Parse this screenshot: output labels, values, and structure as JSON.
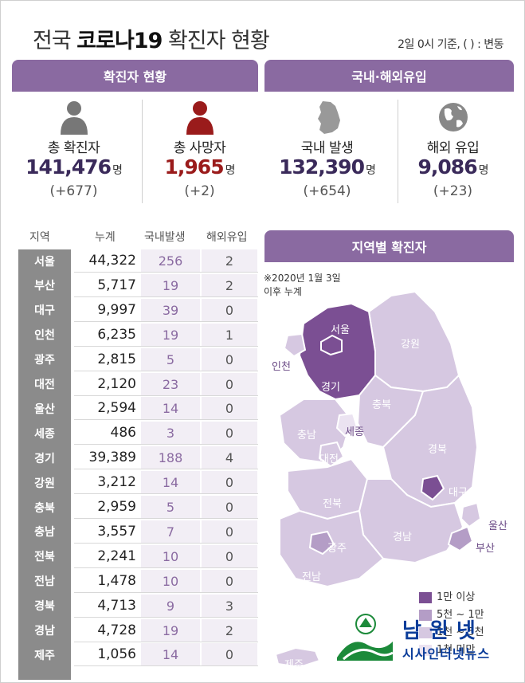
{
  "header": {
    "title_pre": "전국 ",
    "title_bold": "코로나19",
    "title_post": " 확진자 현황",
    "basis": "2일 0시 기준, ( ) : 변동"
  },
  "sections": {
    "confirmed_status": "확진자 현황",
    "domestic_overseas": "국내·해외유입",
    "regional_map": "지역별 확진자"
  },
  "stats": [
    {
      "label": "총 확진자",
      "value": "141,476",
      "unit": "명",
      "change": "(+677)",
      "icon": "person-icon"
    },
    {
      "label": "총 사망자",
      "value": "1,965",
      "unit": "명",
      "change": "(+2)",
      "icon": "person-icon-red"
    },
    {
      "label": "국내 발생",
      "value": "132,390",
      "unit": "명",
      "change": "(+654)",
      "icon": "korea-map-icon"
    },
    {
      "label": "해외 유입",
      "value": "9,086",
      "unit": "명",
      "change": "(+23)",
      "icon": "globe-icon"
    }
  ],
  "table": {
    "headers": [
      "지역",
      "누계",
      "국내발생",
      "해외유입"
    ]
  },
  "chart_data": {
    "type": "table",
    "columns": [
      "지역",
      "누계",
      "국내발생",
      "해외유입"
    ],
    "rows": [
      [
        "서울",
        "44,322",
        "256",
        "2"
      ],
      [
        "부산",
        "5,717",
        "19",
        "2"
      ],
      [
        "대구",
        "9,997",
        "39",
        "0"
      ],
      [
        "인천",
        "6,235",
        "19",
        "1"
      ],
      [
        "광주",
        "2,815",
        "5",
        "0"
      ],
      [
        "대전",
        "2,120",
        "23",
        "0"
      ],
      [
        "울산",
        "2,594",
        "14",
        "0"
      ],
      [
        "세종",
        "486",
        "3",
        "0"
      ],
      [
        "경기",
        "39,389",
        "188",
        "4"
      ],
      [
        "강원",
        "3,212",
        "14",
        "0"
      ],
      [
        "충북",
        "2,959",
        "5",
        "0"
      ],
      [
        "충남",
        "3,557",
        "7",
        "0"
      ],
      [
        "전북",
        "2,241",
        "10",
        "0"
      ],
      [
        "전남",
        "1,478",
        "10",
        "0"
      ],
      [
        "경북",
        "4,713",
        "9",
        "3"
      ],
      [
        "경남",
        "4,728",
        "19",
        "2"
      ],
      [
        "제주",
        "1,056",
        "14",
        "0"
      ]
    ]
  },
  "map": {
    "note_line1": "※2020년 1월 3일",
    "note_line2": "이후 누계",
    "labels": {
      "seoul": "서울",
      "incheon": "인천",
      "gyeonggi": "경기",
      "gangwon": "강원",
      "chungbuk": "충북",
      "chungnam": "충남",
      "sejong": "세종",
      "daejeon": "대전",
      "gyeongbuk": "경북",
      "daegu": "대구",
      "jeonbuk": "전북",
      "gyeongnam": "경남",
      "ulsan": "울산",
      "busan": "부산",
      "gwangju": "광주",
      "jeonnam": "전남",
      "jeju": "제주"
    },
    "legend": [
      {
        "label": "1만 이상",
        "color": "#7b4f93"
      },
      {
        "label": "5천 ~ 1만",
        "color": "#b49dc6"
      },
      {
        "label": "1천 ~ 5천",
        "color": "#d6c8e1"
      },
      {
        "label": "1천 미만",
        "color": "#ebe3f1"
      }
    ]
  },
  "watermark": {
    "big": "남원넷",
    "small": "시사인터넷뉴스"
  }
}
